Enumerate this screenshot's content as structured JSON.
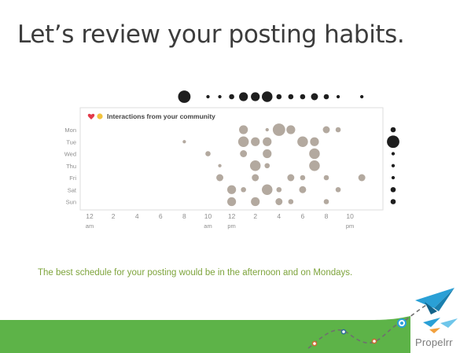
{
  "slide": {
    "title": "Let’s review your posting habits.",
    "caption": "The best schedule for your posting would be in the afternoon and on Mondays.",
    "brand": "Propelrr"
  },
  "colors": {
    "bubble": "#b3a99f",
    "marginal": "#1e1e1e",
    "accent_green": "#7ea43c",
    "band_green": "#5db348",
    "heart": "#e23a4a",
    "coin": "#f2c33d",
    "plane": "#2aa0d6"
  },
  "chart_data": {
    "type": "scatter",
    "subtype": "punchcard",
    "legend": "Interactions from your community",
    "legend_placement": "top-left",
    "days": [
      "Mon",
      "Tue",
      "Wed",
      "Thu",
      "Fri",
      "Sat",
      "Sun"
    ],
    "hour_range": [
      0,
      23
    ],
    "x_ticks": [
      {
        "hour": 0,
        "label": "12",
        "sub": "am"
      },
      {
        "hour": 2,
        "label": "2",
        "sub": ""
      },
      {
        "hour": 4,
        "label": "4",
        "sub": ""
      },
      {
        "hour": 6,
        "label": "6",
        "sub": ""
      },
      {
        "hour": 8,
        "label": "8",
        "sub": ""
      },
      {
        "hour": 10,
        "label": "10",
        "sub": "am"
      },
      {
        "hour": 12,
        "label": "12",
        "sub": "pm"
      },
      {
        "hour": 14,
        "label": "2",
        "sub": ""
      },
      {
        "hour": 16,
        "label": "4",
        "sub": ""
      },
      {
        "hour": 18,
        "label": "6",
        "sub": ""
      },
      {
        "hour": 20,
        "label": "8",
        "sub": ""
      },
      {
        "hour": 22,
        "label": "10",
        "sub": "pm"
      }
    ],
    "points": [
      {
        "day": "Mon",
        "hour": 13,
        "value": 4
      },
      {
        "day": "Mon",
        "hour": 15,
        "value": 1
      },
      {
        "day": "Mon",
        "hour": 16,
        "value": 6
      },
      {
        "day": "Mon",
        "hour": 17,
        "value": 4
      },
      {
        "day": "Mon",
        "hour": 20,
        "value": 3
      },
      {
        "day": "Mon",
        "hour": 21,
        "value": 2
      },
      {
        "day": "Tue",
        "hour": 8,
        "value": 1
      },
      {
        "day": "Tue",
        "hour": 13,
        "value": 5
      },
      {
        "day": "Tue",
        "hour": 14,
        "value": 4
      },
      {
        "day": "Tue",
        "hour": 15,
        "value": 4
      },
      {
        "day": "Tue",
        "hour": 18,
        "value": 5
      },
      {
        "day": "Tue",
        "hour": 19,
        "value": 4
      },
      {
        "day": "Wed",
        "hour": 10,
        "value": 2
      },
      {
        "day": "Wed",
        "hour": 13,
        "value": 3
      },
      {
        "day": "Wed",
        "hour": 15,
        "value": 4
      },
      {
        "day": "Wed",
        "hour": 19,
        "value": 5
      },
      {
        "day": "Thu",
        "hour": 11,
        "value": 1
      },
      {
        "day": "Thu",
        "hour": 14,
        "value": 5
      },
      {
        "day": "Thu",
        "hour": 15,
        "value": 2
      },
      {
        "day": "Thu",
        "hour": 19,
        "value": 5
      },
      {
        "day": "Fri",
        "hour": 11,
        "value": 3
      },
      {
        "day": "Fri",
        "hour": 14,
        "value": 3
      },
      {
        "day": "Fri",
        "hour": 17,
        "value": 3
      },
      {
        "day": "Fri",
        "hour": 18,
        "value": 2
      },
      {
        "day": "Fri",
        "hour": 20,
        "value": 2
      },
      {
        "day": "Fri",
        "hour": 23,
        "value": 3
      },
      {
        "day": "Sat",
        "hour": 12,
        "value": 4
      },
      {
        "day": "Sat",
        "hour": 13,
        "value": 2
      },
      {
        "day": "Sat",
        "hour": 15,
        "value": 5
      },
      {
        "day": "Sat",
        "hour": 16,
        "value": 2
      },
      {
        "day": "Sat",
        "hour": 18,
        "value": 3
      },
      {
        "day": "Sat",
        "hour": 21,
        "value": 2
      },
      {
        "day": "Sun",
        "hour": 12,
        "value": 4
      },
      {
        "day": "Sun",
        "hour": 14,
        "value": 4
      },
      {
        "day": "Sun",
        "hour": 16,
        "value": 3
      },
      {
        "day": "Sun",
        "hour": 17,
        "value": 2
      },
      {
        "day": "Sun",
        "hour": 20,
        "value": 2
      }
    ],
    "hour_totals": [
      {
        "hour": 8,
        "value": 6
      },
      {
        "hour": 10,
        "value": 1
      },
      {
        "hour": 11,
        "value": 1
      },
      {
        "hour": 12,
        "value": 2
      },
      {
        "hour": 13,
        "value": 4
      },
      {
        "hour": 14,
        "value": 4
      },
      {
        "hour": 15,
        "value": 5
      },
      {
        "hour": 16,
        "value": 2
      },
      {
        "hour": 17,
        "value": 2
      },
      {
        "hour": 18,
        "value": 2
      },
      {
        "hour": 19,
        "value": 3
      },
      {
        "hour": 20,
        "value": 2
      },
      {
        "hour": 21,
        "value": 1
      },
      {
        "hour": 23,
        "value": 1
      }
    ],
    "day_totals": [
      {
        "day": "Mon",
        "value": 2
      },
      {
        "day": "Tue",
        "value": 6
      },
      {
        "day": "Wed",
        "value": 1
      },
      {
        "day": "Thu",
        "value": 1
      },
      {
        "day": "Fri",
        "value": 1
      },
      {
        "day": "Sat",
        "value": 2
      },
      {
        "day": "Sun",
        "value": 2
      }
    ]
  }
}
